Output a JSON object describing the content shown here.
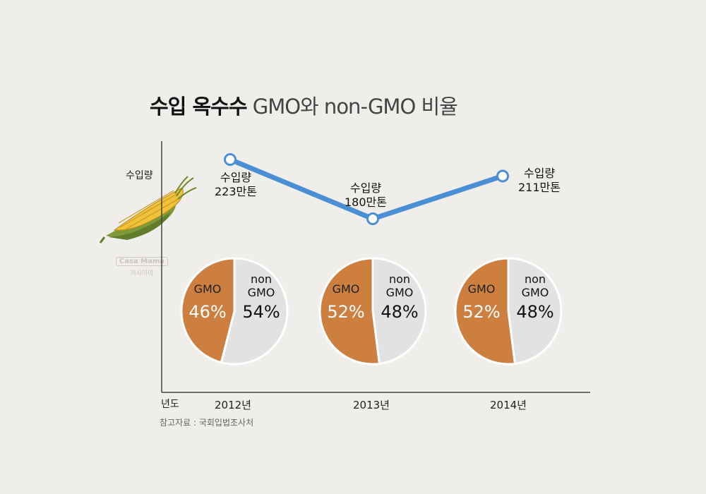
{
  "title_strong": "수입 옥수수",
  "title_light": "GMO와 non-GMO 비율",
  "y_axis_label": "수입량",
  "x_axis_label": "년도",
  "source": "참고자료 : 국회입법조사처",
  "watermark": {
    "brand": "Casa Mama",
    "sub": "까사마마"
  },
  "colors": {
    "gmo": "#cc7f3f",
    "non_gmo": "#e2e2e2",
    "line": "#4a8fd4",
    "axis": "#444444"
  },
  "chart_data": [
    {
      "type": "line",
      "x": [
        "2012년",
        "2013년",
        "2014년"
      ],
      "series": [
        {
          "values": [
            223,
            180,
            211
          ]
        }
      ],
      "labels": [
        [
          "수입량",
          "223만톤"
        ],
        [
          "수입량",
          "180만톤"
        ],
        [
          "수입량",
          "211만톤"
        ]
      ],
      "ylabel": "수입량",
      "xlabel": "년도"
    },
    {
      "type": "pie",
      "year": "2012년",
      "slices": [
        {
          "name": "GMO",
          "value": 46,
          "label": "46%"
        },
        {
          "name": "non GMO",
          "value": 54,
          "label": "54%"
        }
      ]
    },
    {
      "type": "pie",
      "year": "2013년",
      "slices": [
        {
          "name": "GMO",
          "value": 52,
          "label": "52%"
        },
        {
          "name": "non GMO",
          "value": 48,
          "label": "48%"
        }
      ]
    },
    {
      "type": "pie",
      "year": "2014년",
      "slices": [
        {
          "name": "GMO",
          "value": 52,
          "label": "52%"
        },
        {
          "name": "non GMO",
          "value": 48,
          "label": "48%"
        }
      ]
    }
  ]
}
